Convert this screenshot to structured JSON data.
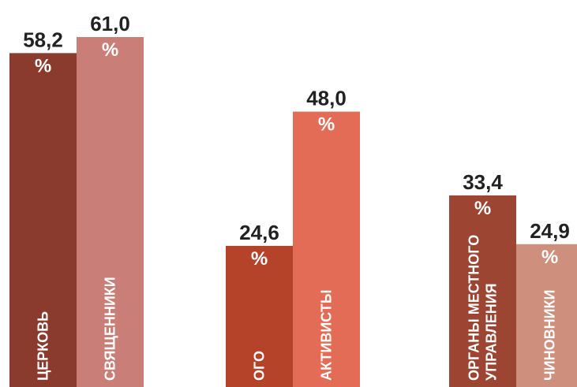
{
  "chart_data": {
    "type": "bar",
    "ylim": [
      0,
      61.0
    ],
    "grid": false,
    "legend": "none",
    "bars": [
      {
        "category": [
          "ЦЕРКОВЬ"
        ],
        "value": 58.2,
        "value_label": "58,2",
        "unit": "%",
        "color": "#8b3a2e"
      },
      {
        "category": [
          "СВЯЩЕННИКИ"
        ],
        "value": 61.0,
        "value_label": "61,0",
        "unit": "%",
        "color": "#c97f78"
      },
      {
        "category": [
          "ОГО"
        ],
        "value": 24.6,
        "value_label": "24,6",
        "unit": "%",
        "color": "#b5432a"
      },
      {
        "category": [
          "АКТИВИСТЫ"
        ],
        "value": 48.0,
        "value_label": "48,0",
        "unit": "%",
        "color": "#e36c57"
      },
      {
        "category": [
          "ОРГАНЫ МЕСТНОГО",
          "УПРАВЛЕНИЯ"
        ],
        "value": 33.4,
        "value_label": "33,4",
        "unit": "%",
        "color": "#9c4532"
      },
      {
        "category": [
          "ЧИНОВНИКИ"
        ],
        "value": 24.9,
        "value_label": "24,9",
        "unit": "%",
        "color": "#cf8f7d"
      }
    ]
  }
}
